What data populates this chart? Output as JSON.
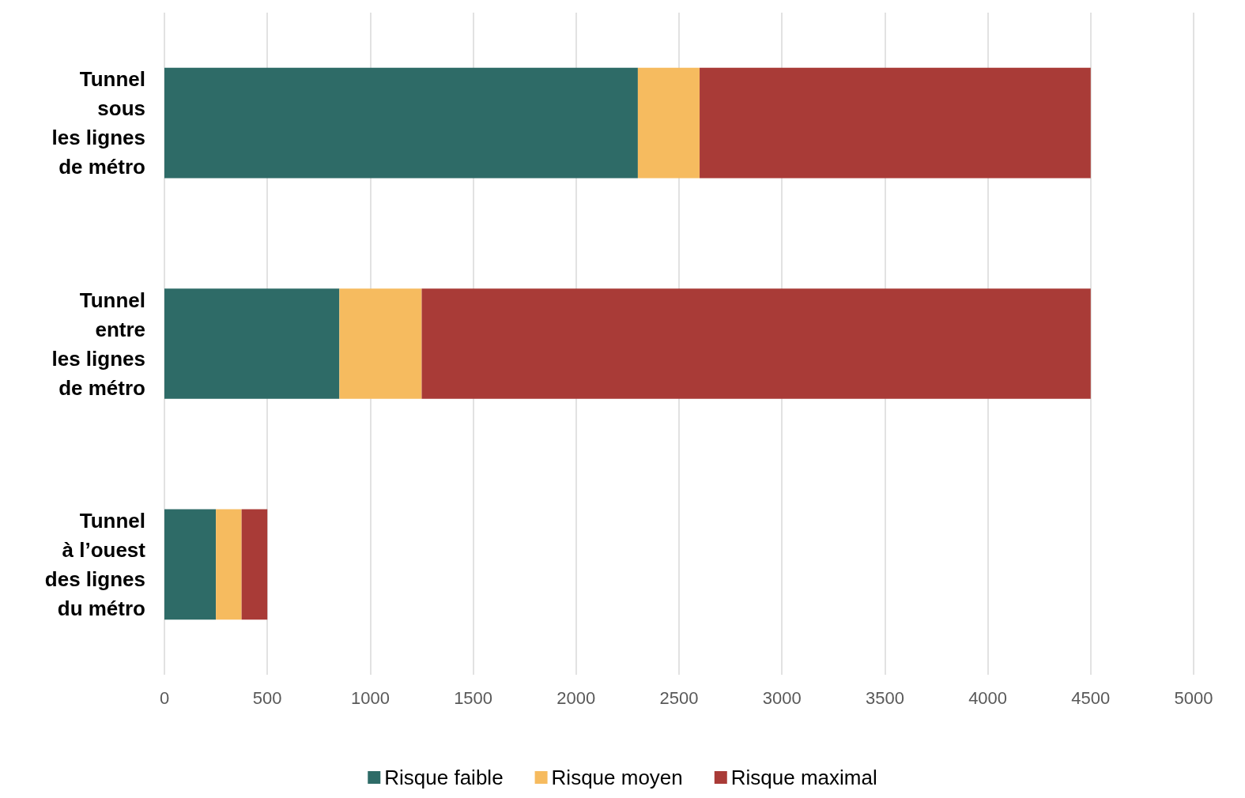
{
  "chart_data": {
    "type": "bar",
    "orientation": "horizontal",
    "stacked": true,
    "categories": [
      "Tunnel\nsous\nles lignes\nde métro",
      "Tunnel\nentre\nles lignes\nde métro",
      "Tunnel\nà l’ouest\ndes lignes\ndu métro"
    ],
    "series": [
      {
        "name": "Risque faible",
        "color": "#2e6b67",
        "values": [
          2300,
          850,
          250
        ]
      },
      {
        "name": "Risque moyen",
        "color": "#f6bb5f",
        "values": [
          300,
          400,
          125
        ]
      },
      {
        "name": "Risque maximal",
        "color": "#a93b37",
        "values": [
          1900,
          3250,
          125
        ]
      }
    ],
    "xlim": [
      0,
      5000
    ],
    "xticks": [
      0,
      500,
      1000,
      1500,
      2000,
      2500,
      3000,
      3500,
      4000,
      4500,
      5000
    ],
    "grid": "x",
    "legend": "bottom"
  }
}
